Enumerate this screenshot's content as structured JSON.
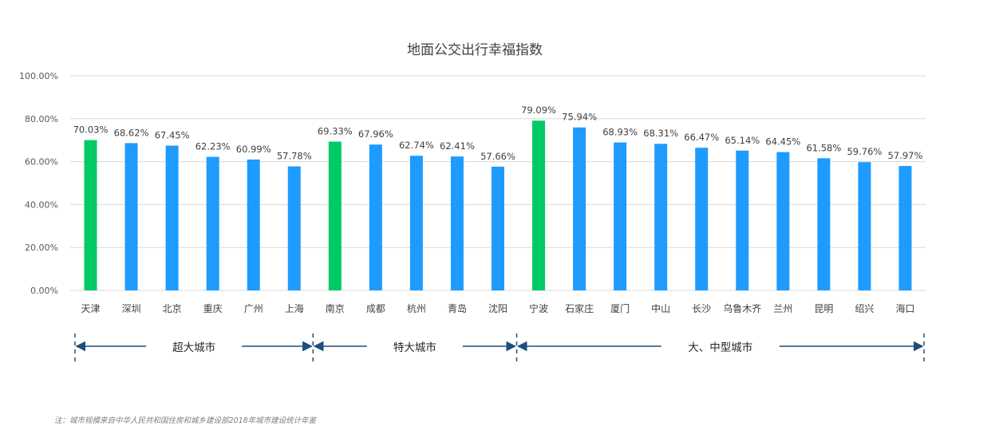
{
  "chart_data": {
    "type": "bar",
    "title": "地面公交出行幸福指数",
    "categories": [
      "天津",
      "深圳",
      "北京",
      "重庆",
      "广州",
      "上海",
      "南京",
      "成都",
      "杭州",
      "青岛",
      "沈阳",
      "宁波",
      "石家庄",
      "厦门",
      "中山",
      "长沙",
      "乌鲁木齐",
      "兰州",
      "昆明",
      "绍兴",
      "海口"
    ],
    "values": [
      70.03,
      68.62,
      67.45,
      62.23,
      60.99,
      57.78,
      69.33,
      67.96,
      62.74,
      62.41,
      57.66,
      79.09,
      75.94,
      68.93,
      68.31,
      66.47,
      65.14,
      64.45,
      61.58,
      59.76,
      57.97
    ],
    "value_labels": [
      "70.03%",
      "68.62%",
      "67.45%",
      "62.23%",
      "60.99%",
      "57.78%",
      "69.33%",
      "67.96%",
      "62.74%",
      "62.41%",
      "57.66%",
      "79.09%",
      "75.94%",
      "68.93%",
      "68.31%",
      "66.47%",
      "65.14%",
      "64.45%",
      "61.58%",
      "59.76%",
      "57.97%"
    ],
    "highlight_indices": [
      0,
      6,
      11
    ],
    "ylim": [
      0,
      100
    ],
    "yticks": [
      0,
      20,
      40,
      60,
      80,
      100
    ],
    "ytick_labels": [
      "0.00%",
      "20.00%",
      "40.00%",
      "60.00%",
      "80.00%",
      "100.00%"
    ],
    "grid": true,
    "colors": {
      "bar": "#1e9bff",
      "highlight": "#00c965",
      "grid": "#d9d9d9",
      "arrow": "#1f4e79"
    },
    "groups": [
      {
        "label": "超大城市",
        "start": 0,
        "end": 5
      },
      {
        "label": "特大城市",
        "start": 6,
        "end": 10
      },
      {
        "label": "大、中型城市",
        "start": 11,
        "end": 20
      }
    ]
  },
  "note": "注：城市规模来自中华人民共和国住房和城乡建设部2018年城市建设统计年鉴"
}
